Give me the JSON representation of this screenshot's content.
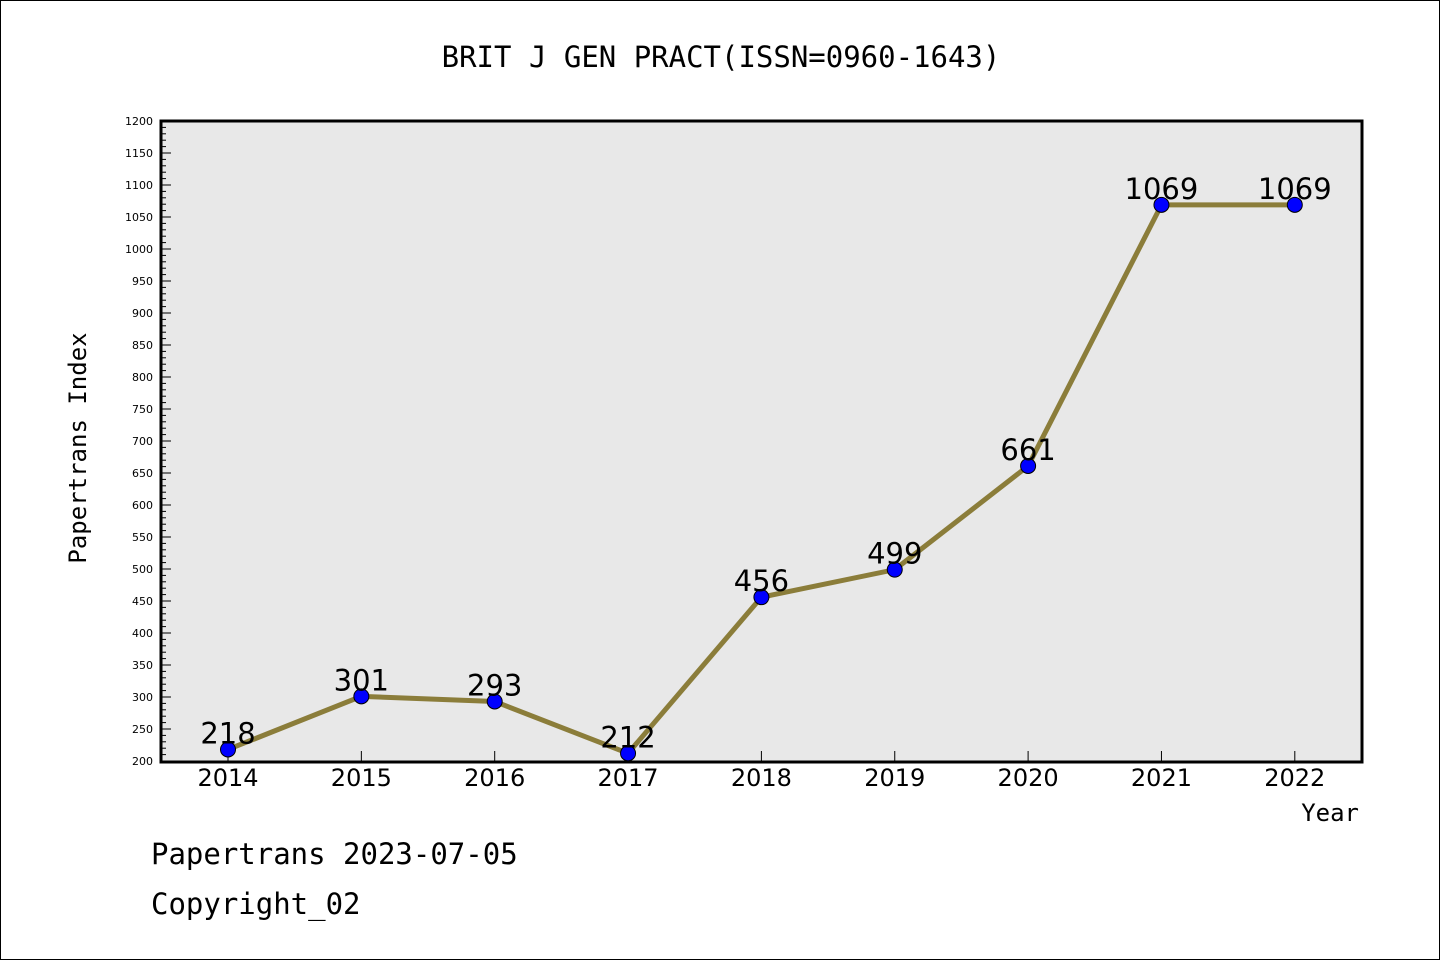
{
  "chart_data": {
    "type": "line",
    "title": "BRIT J GEN PRACT(ISSN=0960-1643)",
    "xlabel": "Year",
    "ylabel": "Papertrans Index",
    "categories": [
      "2014",
      "2015",
      "2016",
      "2017",
      "2018",
      "2019",
      "2020",
      "2021",
      "2022"
    ],
    "values": [
      218,
      301,
      293,
      212,
      456,
      499,
      661,
      1069,
      1069
    ],
    "data_labels": [
      "218",
      "301",
      "293",
      "212",
      "456",
      "499",
      "661",
      "1069",
      "1069"
    ],
    "ylim": [
      200,
      1200
    ],
    "yticks": [
      "200",
      "250",
      "300",
      "350",
      "400",
      "450",
      "500",
      "550",
      "600",
      "650",
      "700",
      "750",
      "800",
      "850",
      "900",
      "950",
      "1000",
      "1050",
      "1100",
      "1150",
      "1200"
    ],
    "grid": false,
    "line_color": "#8b7d3a",
    "marker_color": "#0000ff",
    "plot_background": "#e8e8e8"
  },
  "footer": {
    "line1": "Papertrans 2023-07-05",
    "line2": "Copyright_02"
  }
}
